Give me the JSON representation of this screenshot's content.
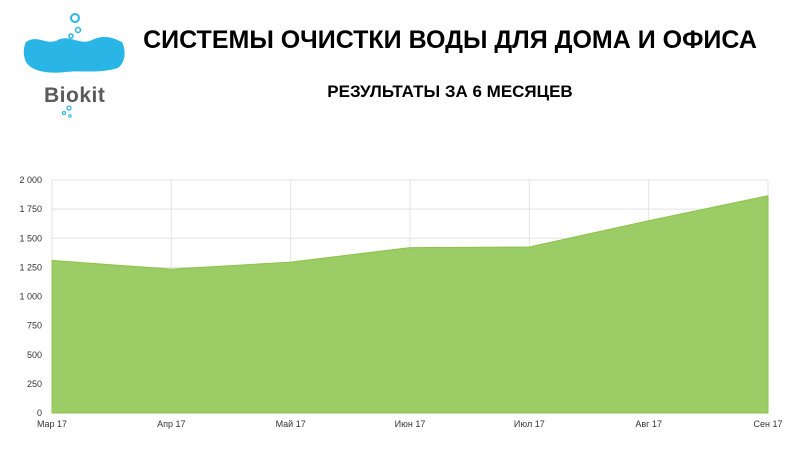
{
  "header": {
    "title": "СИСТЕМЫ ОЧИСТКИ ВОДЫ ДЛЯ ДОМА И ОФИСА",
    "subtitle": "РЕЗУЛЬТАТЫ ЗА 6 МЕСЯЦЕВ"
  },
  "logo": {
    "text": "Biokit",
    "color": "#29b6e6"
  },
  "chart_data": {
    "type": "area",
    "categories": [
      "Мар 17",
      "Апр 17",
      "Май 17",
      "Июн 17",
      "Июл 17",
      "Авг 17",
      "Сен 17"
    ],
    "values": [
      1310,
      1235,
      1295,
      1420,
      1425,
      1650,
      1865
    ],
    "ylim": [
      0,
      2000
    ],
    "yticks": [
      0,
      250,
      500,
      750,
      1000,
      1250,
      1500,
      1750,
      2000
    ],
    "ytick_labels": [
      "0",
      "250",
      "500",
      "750",
      "1 000",
      "1 250",
      "1 500",
      "1 750",
      "2 000"
    ],
    "grid": true,
    "fill_color": "#9ccc65",
    "title": "",
    "xlabel": "",
    "ylabel": ""
  }
}
